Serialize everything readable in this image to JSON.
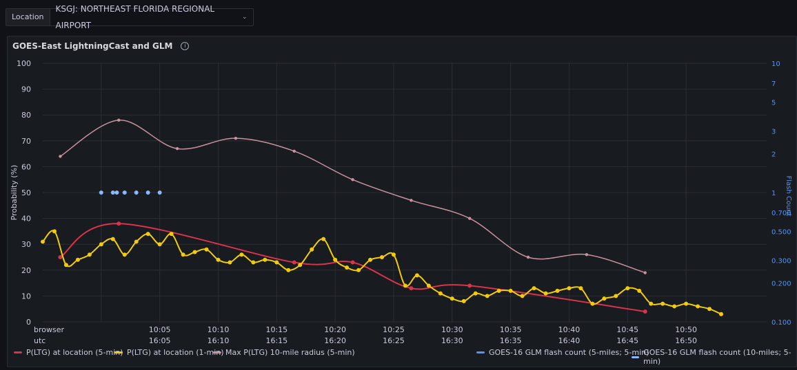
{
  "variable": {
    "label": "Location",
    "value": "KSGJ: NORTHEAST FLORIDA REGIONAL AIRPORT"
  },
  "panel": {
    "title": "GOES-East LightningCast and GLM"
  },
  "colors": {
    "red": "#d9344a",
    "yellow": "#f2cc0c",
    "pink": "#c8929f",
    "blue": "#5794f2",
    "lightblue": "#8ab8ff"
  },
  "chart_data": {
    "type": "line",
    "ylabel": "Probability (%)",
    "y2label": "Flash Count",
    "ylim": [
      0,
      100
    ],
    "y2_scale": "log",
    "y2lim": [
      0.1,
      10
    ],
    "y_ticks": [
      "0",
      "10",
      "20",
      "30",
      "40",
      "50",
      "60",
      "70",
      "80",
      "90",
      "100"
    ],
    "y2_ticks": [
      "0.100",
      "0.200",
      "0.300",
      "0.500",
      "0.700",
      "1",
      "2",
      "3",
      "5",
      "7",
      "10"
    ],
    "x_tick_rows": {
      "browser_label": "browser",
      "utc_label": "utc",
      "browser": [
        "10:05",
        "10:10",
        "10:15",
        "10:20",
        "10:25",
        "10:30",
        "10:35",
        "10:40",
        "10:45",
        "10:50"
      ],
      "utc": [
        "16:05",
        "16:10",
        "16:15",
        "16:20",
        "16:25",
        "16:30",
        "16:35",
        "16:40",
        "16:45",
        "16:50"
      ]
    },
    "grid": true,
    "series": [
      {
        "name": "P(LTG) at location (5-min)",
        "color": "#d9344a",
        "points": [
          [
            "09:56:30",
            25
          ],
          [
            "10:01:30",
            38
          ],
          [
            "10:16:30",
            23
          ],
          [
            "10:21:30",
            23
          ],
          [
            "10:26:30",
            13
          ],
          [
            "10:31:30",
            14
          ],
          [
            "10:46:30",
            4
          ]
        ]
      },
      {
        "name": "P(LTG) at location (1-min)",
        "color": "#f2cc0c",
        "points": [
          [
            "09:55:00",
            31
          ],
          [
            "09:56:00",
            35
          ],
          [
            "09:57:00",
            22
          ],
          [
            "09:58:00",
            24
          ],
          [
            "09:59:00",
            26
          ],
          [
            "10:00:00",
            30
          ],
          [
            "10:01:00",
            32
          ],
          [
            "10:02:00",
            26
          ],
          [
            "10:03:00",
            31
          ],
          [
            "10:04:00",
            34
          ],
          [
            "10:05:00",
            30
          ],
          [
            "10:06:00",
            34
          ],
          [
            "10:07:00",
            26
          ],
          [
            "10:08:00",
            27
          ],
          [
            "10:09:00",
            28
          ],
          [
            "10:10:00",
            24
          ],
          [
            "10:11:00",
            23
          ],
          [
            "10:12:00",
            26
          ],
          [
            "10:13:00",
            23
          ],
          [
            "10:14:00",
            24
          ],
          [
            "10:15:00",
            23
          ],
          [
            "10:16:00",
            20
          ],
          [
            "10:17:00",
            22
          ],
          [
            "10:18:00",
            28
          ],
          [
            "10:19:00",
            32
          ],
          [
            "10:20:00",
            24
          ],
          [
            "10:21:00",
            21
          ],
          [
            "10:22:00",
            20
          ],
          [
            "10:23:00",
            24
          ],
          [
            "10:24:00",
            25
          ],
          [
            "10:25:00",
            26
          ],
          [
            "10:26:00",
            14
          ],
          [
            "10:27:00",
            18
          ],
          [
            "10:28:00",
            14
          ],
          [
            "10:29:00",
            11
          ],
          [
            "10:30:00",
            9
          ],
          [
            "10:31:00",
            8
          ],
          [
            "10:32:00",
            11
          ],
          [
            "10:33:00",
            10
          ],
          [
            "10:34:00",
            12
          ],
          [
            "10:35:00",
            12
          ],
          [
            "10:36:00",
            10
          ],
          [
            "10:37:00",
            13
          ],
          [
            "10:38:00",
            11
          ],
          [
            "10:39:00",
            12
          ],
          [
            "10:40:00",
            13
          ],
          [
            "10:41:00",
            13
          ],
          [
            "10:42:00",
            7
          ],
          [
            "10:43:00",
            9
          ],
          [
            "10:44:00",
            10
          ],
          [
            "10:45:00",
            13
          ],
          [
            "10:46:00",
            12
          ],
          [
            "10:47:00",
            7
          ],
          [
            "10:48:00",
            7
          ],
          [
            "10:49:00",
            6
          ],
          [
            "10:50:00",
            7
          ],
          [
            "10:51:00",
            6
          ],
          [
            "10:52:00",
            5
          ],
          [
            "10:53:00",
            3
          ]
        ]
      },
      {
        "name": "Max P(LTG) 10-mile radius (5-min)",
        "color": "#c8929f",
        "points": [
          [
            "09:56:30",
            64
          ],
          [
            "10:01:30",
            78
          ],
          [
            "10:06:30",
            67
          ],
          [
            "10:11:30",
            71
          ],
          [
            "10:16:30",
            66
          ],
          [
            "10:21:30",
            55
          ],
          [
            "10:26:30",
            47
          ],
          [
            "10:31:30",
            40
          ],
          [
            "10:36:30",
            25
          ],
          [
            "10:41:30",
            26
          ],
          [
            "10:46:30",
            19
          ]
        ]
      },
      {
        "name": "GOES-16 GLM flash count (5-miles; 5-min)",
        "color": "#5794f2",
        "axis": "right",
        "points": []
      },
      {
        "name": "GOES-16 GLM flash count (10-miles; 5-min)",
        "color": "#8ab8ff",
        "axis": "right",
        "points": [
          [
            "10:00:00",
            1
          ],
          [
            "10:01:00",
            1
          ],
          [
            "10:01:20",
            1
          ],
          [
            "10:02:00",
            1
          ],
          [
            "10:03:00",
            1
          ],
          [
            "10:04:00",
            1
          ],
          [
            "10:05:00",
            1
          ]
        ]
      }
    ]
  }
}
